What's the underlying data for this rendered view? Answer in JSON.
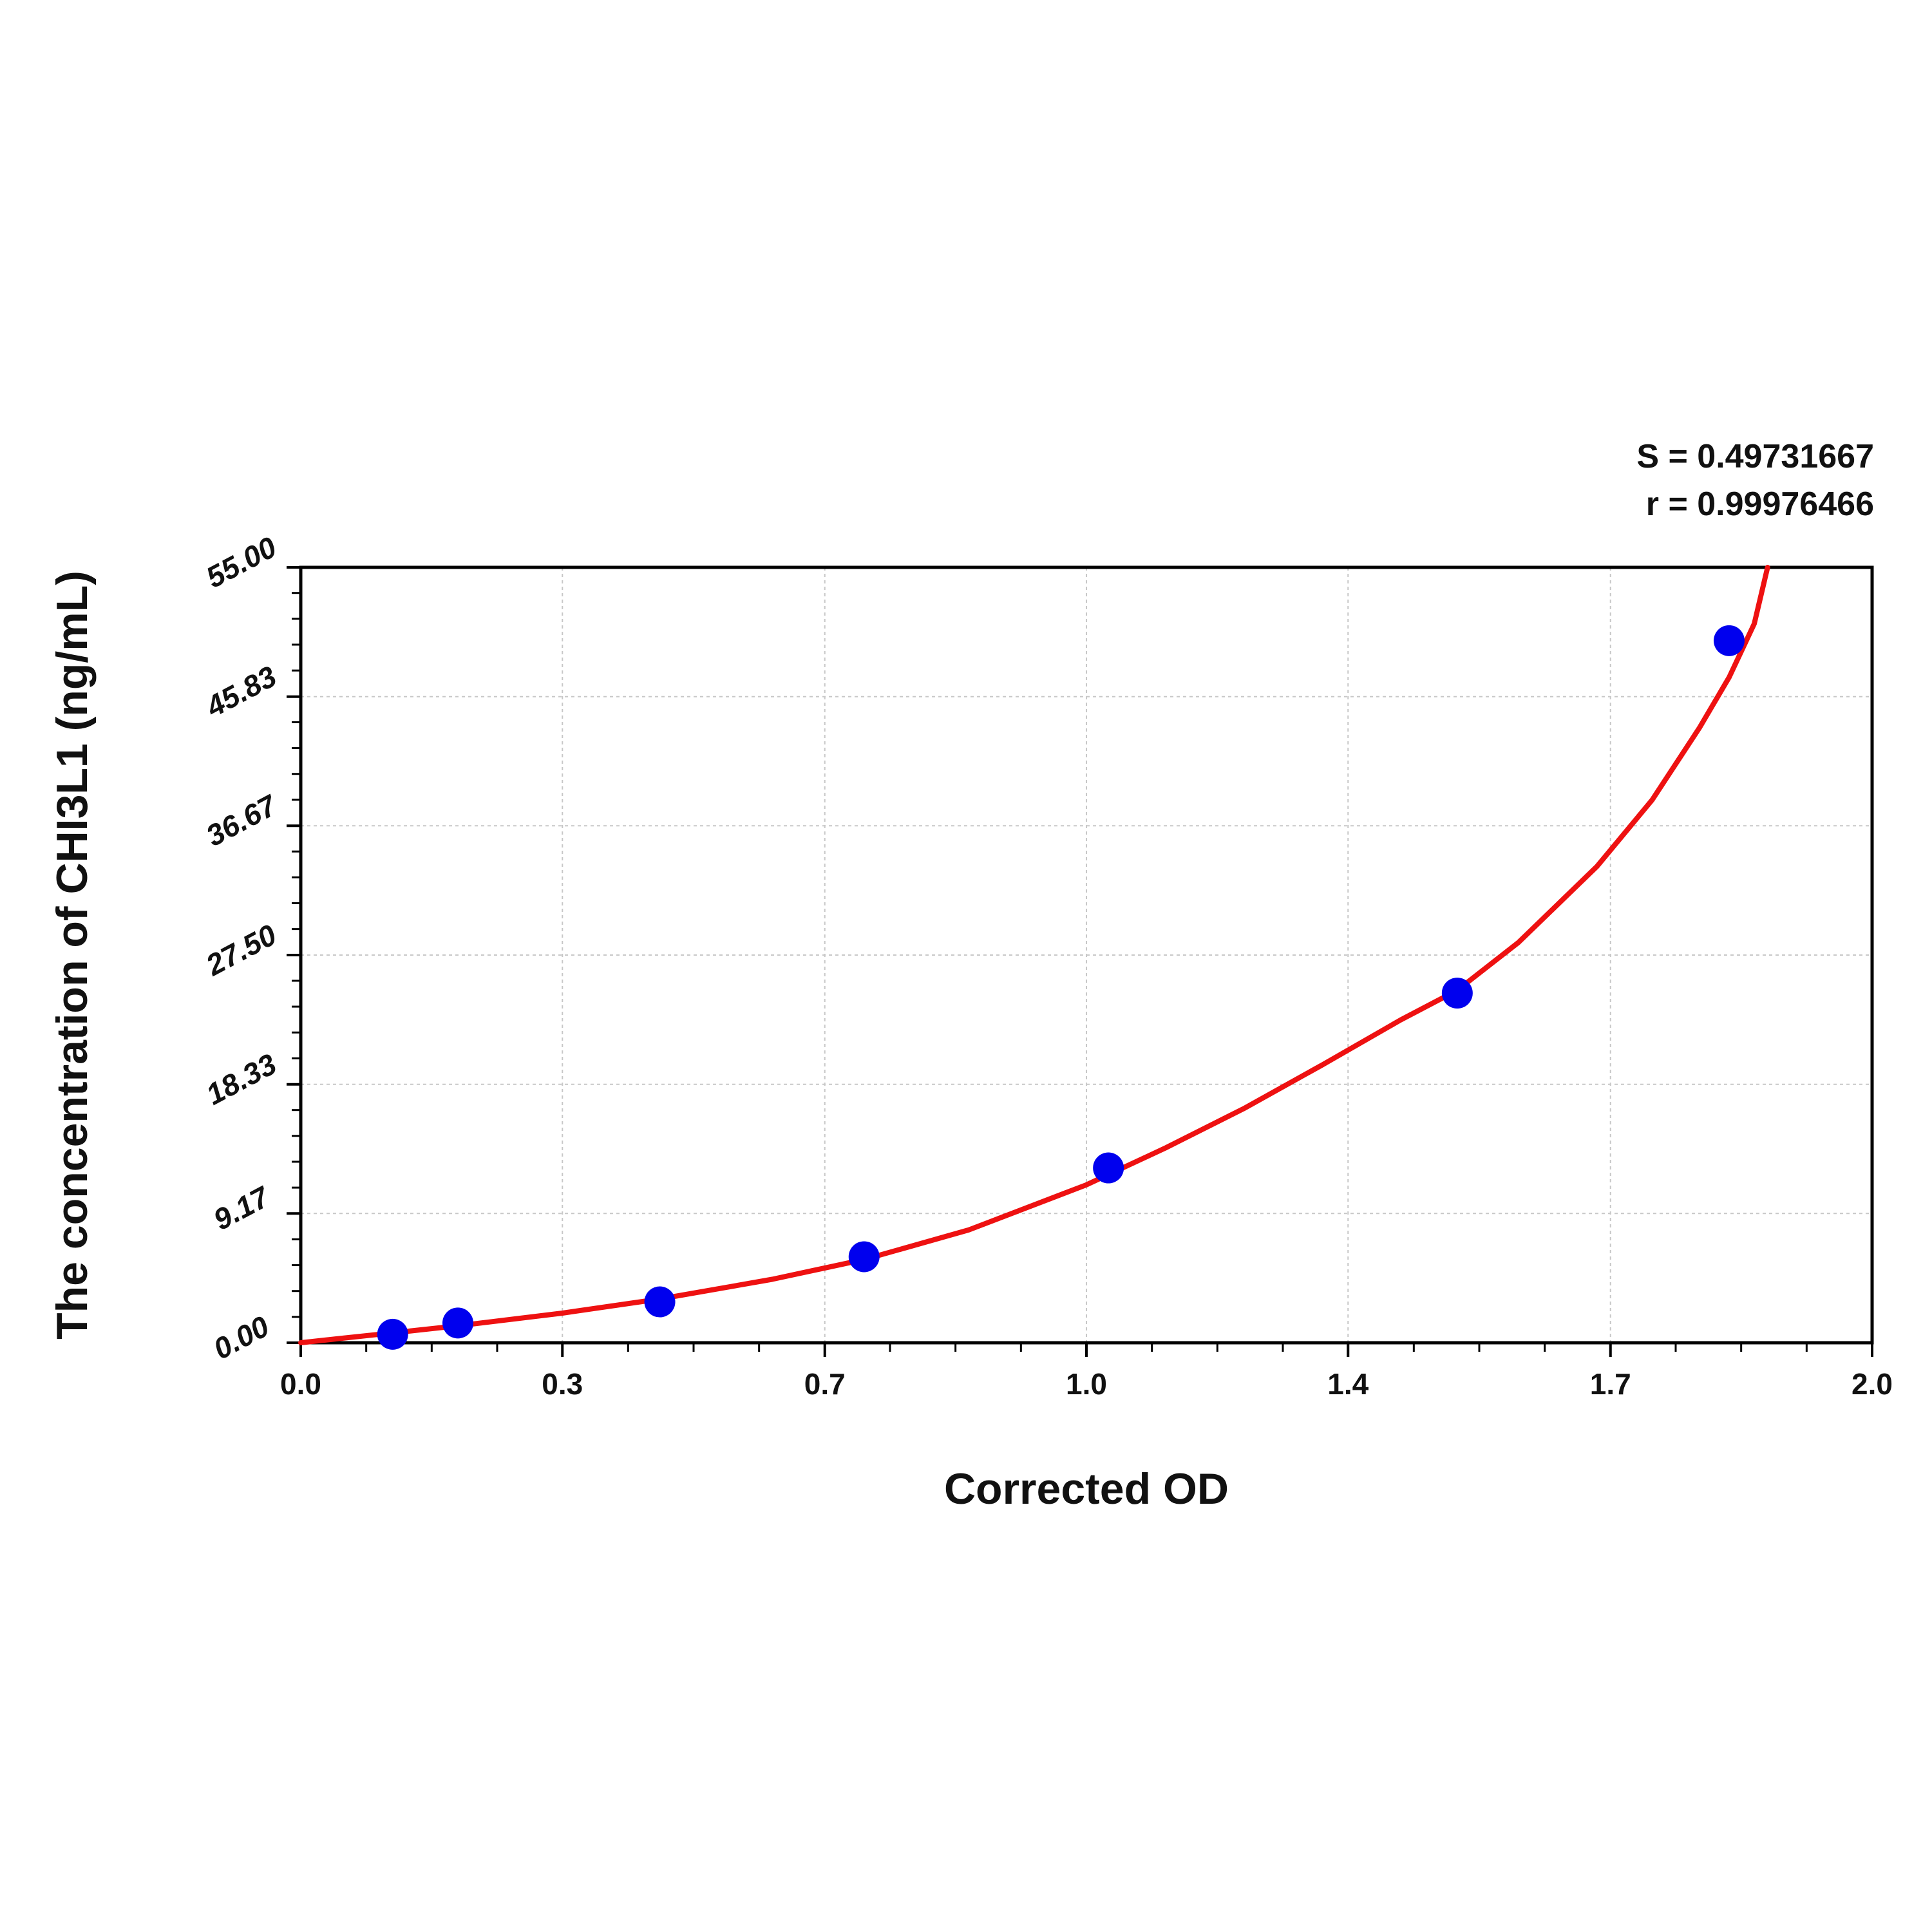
{
  "chart_data": {
    "type": "scatter",
    "xlabel": "Corrected OD",
    "ylabel": "The concentration of CHI3L1 (ng/mL)",
    "xlim": [
      0.0,
      2.0
    ],
    "ylim": [
      0.0,
      55.0
    ],
    "x_ticks": [
      "0.0",
      "0.3",
      "0.7",
      "1.0",
      "1.4",
      "1.7",
      "2.0"
    ],
    "x_tick_values": [
      0.0,
      0.333,
      0.667,
      1.0,
      1.333,
      1.667,
      2.0
    ],
    "y_ticks": [
      "0.00",
      "9.17",
      "18.33",
      "27.50",
      "36.67",
      "45.83",
      "55.00"
    ],
    "y_tick_values": [
      0.0,
      9.17,
      18.33,
      27.5,
      36.67,
      45.83,
      55.0
    ],
    "grid": true,
    "stats": {
      "s_text": "S = 0.49731667",
      "r_text": "r = 0.99976466"
    },
    "series": [
      {
        "type": "scatter",
        "color": "#0000ee",
        "points": [
          {
            "x": 0.117,
            "y": 0.6
          },
          {
            "x": 0.2,
            "y": 1.4
          },
          {
            "x": 0.457,
            "y": 2.9
          },
          {
            "x": 0.717,
            "y": 6.1
          },
          {
            "x": 1.028,
            "y": 12.4
          },
          {
            "x": 1.472,
            "y": 24.8
          },
          {
            "x": 1.818,
            "y": 49.8
          }
        ]
      },
      {
        "type": "line",
        "color": "#ee1111",
        "points": [
          {
            "x": 0.0,
            "y": 0.0
          },
          {
            "x": 0.05,
            "y": 0.3
          },
          {
            "x": 0.117,
            "y": 0.7
          },
          {
            "x": 0.2,
            "y": 1.2
          },
          {
            "x": 0.333,
            "y": 2.1
          },
          {
            "x": 0.457,
            "y": 3.1
          },
          {
            "x": 0.6,
            "y": 4.5
          },
          {
            "x": 0.717,
            "y": 5.9
          },
          {
            "x": 0.85,
            "y": 8.0
          },
          {
            "x": 1.0,
            "y": 11.2
          },
          {
            "x": 1.1,
            "y": 13.8
          },
          {
            "x": 1.2,
            "y": 16.6
          },
          {
            "x": 1.3,
            "y": 19.7
          },
          {
            "x": 1.4,
            "y": 22.9
          },
          {
            "x": 1.472,
            "y": 25.0
          },
          {
            "x": 1.55,
            "y": 28.4
          },
          {
            "x": 1.65,
            "y": 33.8
          },
          {
            "x": 1.72,
            "y": 38.5
          },
          {
            "x": 1.78,
            "y": 43.6
          },
          {
            "x": 1.818,
            "y": 47.2
          },
          {
            "x": 1.85,
            "y": 51.0
          },
          {
            "x": 1.867,
            "y": 55.0
          }
        ]
      }
    ]
  }
}
